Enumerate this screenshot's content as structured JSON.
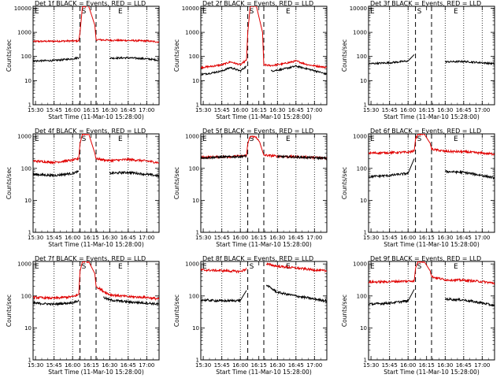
{
  "figure": {
    "x_tick_labels": [
      "15:30",
      "15:45",
      "16:00",
      "16:15",
      "16:30",
      "16:45",
      "17:00"
    ],
    "x_label": "Start Time (11-Mar-10 15:28:00)",
    "y_label": "Counts/sec",
    "y_tick_labels": [
      "1",
      "10",
      "100",
      "1000",
      "10000"
    ],
    "marker_left": "E",
    "marker_mid": "S",
    "marker_right": "E"
  },
  "chart_data": [
    {
      "type": "line",
      "title": "Det 1f BLACK = Events, RED = LLD",
      "xlim": [
        "15:28",
        "17:10"
      ],
      "ylim": [
        1,
        12000
      ],
      "yscale": "log",
      "x_ticks": [
        "15:30",
        "15:45",
        "16:00",
        "16:15",
        "16:30",
        "16:45",
        "17:00"
      ],
      "dotted_verticals": [
        "15:45",
        "16:00",
        "16:30",
        "16:45",
        "17:00"
      ],
      "dashed_verticals": [
        "16:06",
        "16:19"
      ],
      "series": [
        {
          "color": "#e00000",
          "x": [
            "15:28",
            "15:45",
            "16:00",
            "16:05",
            "16:06",
            "16:08",
            "16:13",
            "16:18",
            "16:19",
            "16:30",
            "16:45",
            "17:00",
            "17:10"
          ],
          "y": [
            420,
            430,
            440,
            440,
            1000,
            12000,
            12000,
            2000,
            500,
            470,
            460,
            440,
            400
          ]
        },
        {
          "color": "#000000",
          "x": [
            "15:28",
            "15:45",
            "16:00",
            "16:05",
            "16:06",
            "16:19",
            "16:30",
            "16:45",
            "17:00",
            "17:10"
          ],
          "y": [
            65,
            68,
            80,
            90,
            null,
            null,
            85,
            88,
            80,
            70
          ]
        }
      ]
    },
    {
      "type": "line",
      "title": "Det 2f BLACK = Events, RED = LLD",
      "xlim": [
        "15:28",
        "17:10"
      ],
      "ylim": [
        1,
        12000
      ],
      "yscale": "log",
      "x_ticks": [
        "15:30",
        "15:45",
        "16:00",
        "16:15",
        "16:30",
        "16:45",
        "17:00"
      ],
      "dotted_verticals": [
        "15:45",
        "16:00",
        "16:30",
        "16:45",
        "17:00"
      ],
      "dashed_verticals": [
        "16:06",
        "16:19"
      ],
      "series": [
        {
          "color": "#e00000",
          "x": [
            "15:28",
            "15:35",
            "15:45",
            "15:52",
            "16:00",
            "16:05",
            "16:06",
            "16:08",
            "16:13",
            "16:18",
            "16:19",
            "16:25",
            "16:35",
            "16:45",
            "16:55",
            "17:05",
            "17:10"
          ],
          "y": [
            35,
            38,
            45,
            60,
            45,
            70,
            1000,
            12000,
            12000,
            1000,
            45,
            42,
            50,
            65,
            45,
            38,
            35
          ]
        },
        {
          "color": "#000000",
          "x": [
            "15:28",
            "15:35",
            "15:45",
            "15:52",
            "16:00",
            "16:05",
            "16:06",
            "16:19",
            "16:25",
            "16:35",
            "16:45",
            "16:55",
            "17:05",
            "17:10"
          ],
          "y": [
            18,
            20,
            25,
            35,
            25,
            40,
            null,
            null,
            25,
            30,
            40,
            30,
            22,
            18
          ]
        }
      ]
    },
    {
      "type": "line",
      "title": "Det 3f BLACK = Events, RED = LLD",
      "xlim": [
        "15:28",
        "17:10"
      ],
      "ylim": [
        1,
        12000
      ],
      "yscale": "log",
      "x_ticks": [
        "15:30",
        "15:45",
        "16:00",
        "16:15",
        "16:30",
        "16:45",
        "17:00"
      ],
      "dotted_verticals": [
        "15:45",
        "16:00",
        "16:30",
        "16:45",
        "17:00"
      ],
      "dashed_verticals": [
        "16:06",
        "16:19"
      ],
      "series": [
        {
          "color": "#000000",
          "x": [
            "15:28",
            "15:45",
            "16:00",
            "16:05",
            "16:06",
            "16:19",
            "16:30",
            "16:45",
            "17:00",
            "17:10"
          ],
          "y": [
            50,
            55,
            65,
            120,
            null,
            null,
            60,
            62,
            55,
            50
          ]
        }
      ]
    },
    {
      "type": "line",
      "title": "Det 4f BLACK = Events, RED = LLD",
      "xlim": [
        "15:28",
        "17:10"
      ],
      "ylim": [
        1,
        1200
      ],
      "yscale": "log",
      "x_ticks": [
        "15:30",
        "15:45",
        "16:00",
        "16:15",
        "16:30",
        "16:45",
        "17:00"
      ],
      "dotted_verticals": [
        "15:45",
        "16:00",
        "16:30",
        "16:45",
        "17:00"
      ],
      "dashed_verticals": [
        "16:06",
        "16:19"
      ],
      "series": [
        {
          "color": "#e00000",
          "x": [
            "15:28",
            "15:45",
            "16:00",
            "16:05",
            "16:06",
            "16:08",
            "16:13",
            "16:18",
            "16:19",
            "16:30",
            "16:45",
            "17:00",
            "17:10"
          ],
          "y": [
            170,
            155,
            180,
            200,
            600,
            1200,
            1200,
            300,
            200,
            175,
            190,
            170,
            150
          ]
        },
        {
          "color": "#000000",
          "x": [
            "15:28",
            "15:45",
            "16:00",
            "16:05",
            "16:06",
            "16:19",
            "16:30",
            "16:45",
            "17:00",
            "17:10"
          ],
          "y": [
            65,
            60,
            70,
            80,
            null,
            null,
            70,
            75,
            65,
            58
          ]
        }
      ]
    },
    {
      "type": "line",
      "title": "Det 5f BLACK = Events, RED = LLD",
      "xlim": [
        "15:28",
        "17:10"
      ],
      "ylim": [
        1,
        1200
      ],
      "yscale": "log",
      "x_ticks": [
        "15:30",
        "15:45",
        "16:00",
        "16:15",
        "16:30",
        "16:45",
        "17:00"
      ],
      "dotted_verticals": [
        "15:45",
        "16:00",
        "16:30",
        "16:45",
        "17:00"
      ],
      "dashed_verticals": [
        "16:06",
        "16:19"
      ],
      "series": [
        {
          "color": "#e00000",
          "x": [
            "15:28",
            "15:45",
            "16:00",
            "16:05",
            "16:06",
            "16:08",
            "16:13",
            "16:16",
            "16:19",
            "16:30",
            "16:45",
            "17:00",
            "17:10"
          ],
          "y": [
            220,
            230,
            240,
            250,
            600,
            1000,
            950,
            600,
            260,
            240,
            230,
            220,
            210
          ]
        },
        {
          "color": "#000000",
          "x": [
            "15:28",
            "15:45",
            "16:00",
            "16:05",
            "16:06",
            "16:19",
            "16:30",
            "16:45",
            "17:00",
            "17:10"
          ],
          "y": [
            215,
            225,
            235,
            245,
            null,
            null,
            235,
            225,
            215,
            205
          ]
        }
      ]
    },
    {
      "type": "line",
      "title": "Det 6f BLACK = Events, RED = LLD",
      "xlim": [
        "15:28",
        "17:10"
      ],
      "ylim": [
        1,
        1200
      ],
      "yscale": "log",
      "x_ticks": [
        "15:30",
        "15:45",
        "16:00",
        "16:15",
        "16:30",
        "16:45",
        "17:00"
      ],
      "dotted_verticals": [
        "15:45",
        "16:00",
        "16:30",
        "16:45",
        "17:00"
      ],
      "dashed_verticals": [
        "16:06",
        "16:19"
      ],
      "series": [
        {
          "color": "#e00000",
          "x": [
            "15:28",
            "15:45",
            "16:00",
            "16:05",
            "16:06",
            "16:08",
            "16:13",
            "16:18",
            "16:19",
            "16:30",
            "16:45",
            "17:00",
            "17:10"
          ],
          "y": [
            300,
            310,
            320,
            350,
            800,
            1200,
            1200,
            600,
            400,
            340,
            330,
            300,
            280
          ]
        },
        {
          "color": "#000000",
          "x": [
            "15:28",
            "15:45",
            "16:00",
            "16:05",
            "16:06",
            "16:19",
            "16:30",
            "16:45",
            "17:00",
            "17:10"
          ],
          "y": [
            55,
            60,
            70,
            200,
            null,
            null,
            80,
            75,
            60,
            50
          ]
        }
      ]
    },
    {
      "type": "line",
      "title": "Det 7f BLACK = Events, RED = LLD",
      "xlim": [
        "15:28",
        "17:10"
      ],
      "ylim": [
        1,
        1200
      ],
      "yscale": "log",
      "x_ticks": [
        "15:30",
        "15:45",
        "16:00",
        "16:15",
        "16:30",
        "16:45",
        "17:00"
      ],
      "dotted_verticals": [
        "15:45",
        "16:00",
        "16:30",
        "16:45",
        "17:00"
      ],
      "dashed_verticals": [
        "16:06",
        "16:19"
      ],
      "series": [
        {
          "color": "#e00000",
          "x": [
            "15:28",
            "15:45",
            "16:00",
            "16:05",
            "16:06",
            "16:08",
            "16:13",
            "16:18",
            "16:19",
            "16:25",
            "16:30",
            "16:45",
            "17:00",
            "17:10"
          ],
          "y": [
            90,
            85,
            95,
            110,
            600,
            1200,
            1200,
            500,
            200,
            140,
            110,
            95,
            90,
            80
          ]
        },
        {
          "color": "#000000",
          "x": [
            "15:28",
            "15:45",
            "16:00",
            "16:05",
            "16:06",
            "16:19",
            "16:25",
            "16:30",
            "16:45",
            "17:00",
            "17:10"
          ],
          "y": [
            60,
            55,
            62,
            70,
            null,
            null,
            90,
            75,
            65,
            60,
            55
          ]
        }
      ]
    },
    {
      "type": "line",
      "title": "Det 8f BLACK = Events, RED = LLD",
      "xlim": [
        "15:28",
        "17:10"
      ],
      "ylim": [
        1,
        1200
      ],
      "yscale": "log",
      "x_ticks": [
        "15:30",
        "15:45",
        "16:00",
        "16:15",
        "16:30",
        "16:45",
        "17:00"
      ],
      "dotted_verticals": [
        "15:45",
        "16:00",
        "16:30",
        "16:45",
        "17:00"
      ],
      "dashed_verticals": [
        "16:06",
        "16:19"
      ],
      "series": [
        {
          "color": "#e00000",
          "x": [
            "15:28",
            "15:45",
            "16:00",
            "16:05",
            "16:06",
            "16:19",
            "16:21",
            "16:30",
            "16:45",
            "17:00",
            "17:10"
          ],
          "y": [
            650,
            620,
            580,
            700,
            null,
            null,
            1000,
            850,
            750,
            650,
            600
          ]
        },
        {
          "color": "#000000",
          "x": [
            "15:28",
            "15:45",
            "16:00",
            "16:05",
            "16:06",
            "16:19",
            "16:21",
            "16:30",
            "16:45",
            "17:00",
            "17:10"
          ],
          "y": [
            75,
            70,
            72,
            150,
            null,
            null,
            220,
            130,
            100,
            80,
            70
          ]
        }
      ]
    },
    {
      "type": "line",
      "title": "Det 9f BLACK = Events, RED = LLD",
      "xlim": [
        "15:28",
        "17:10"
      ],
      "ylim": [
        1,
        1200
      ],
      "yscale": "log",
      "x_ticks": [
        "15:30",
        "15:45",
        "16:00",
        "16:15",
        "16:30",
        "16:45",
        "17:00"
      ],
      "dotted_verticals": [
        "15:45",
        "16:00",
        "16:30",
        "16:45",
        "17:00"
      ],
      "dashed_verticals": [
        "16:06",
        "16:19"
      ],
      "series": [
        {
          "color": "#e00000",
          "x": [
            "15:28",
            "15:45",
            "16:00",
            "16:05",
            "16:06",
            "16:08",
            "16:13",
            "16:18",
            "16:19",
            "16:30",
            "16:45",
            "17:00",
            "17:10"
          ],
          "y": [
            270,
            280,
            290,
            300,
            700,
            1200,
            1200,
            600,
            400,
            320,
            310,
            280,
            250
          ]
        },
        {
          "color": "#000000",
          "x": [
            "15:28",
            "15:45",
            "16:00",
            "16:05",
            "16:06",
            "16:19",
            "16:30",
            "16:45",
            "17:00",
            "17:10"
          ],
          "y": [
            55,
            60,
            70,
            160,
            null,
            null,
            80,
            75,
            60,
            50
          ]
        }
      ]
    }
  ]
}
